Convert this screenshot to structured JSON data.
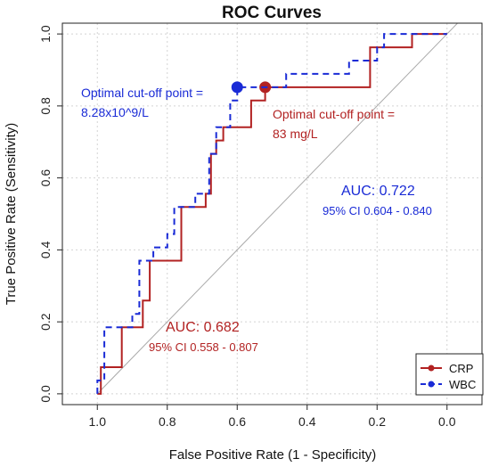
{
  "chart_data": {
    "type": "line",
    "title": "ROC Curves",
    "xlabel": "False Positive Rate (1 - Specificity)",
    "ylabel": "True Positive Rate (Sensitivity)",
    "xlim": [
      1.1,
      -0.1
    ],
    "ylim": [
      -0.03,
      1.03
    ],
    "x_ticks": [
      1.0,
      0.8,
      0.6,
      0.4,
      0.2,
      0.0
    ],
    "x_tick_labels": [
      "1.0",
      "0.8",
      "0.6",
      "0.4",
      "0.2",
      "0.0"
    ],
    "y_ticks": [
      0.0,
      0.2,
      0.4,
      0.6,
      0.8,
      1.0
    ],
    "y_tick_labels": [
      "0.0",
      "0.2",
      "0.4",
      "0.6",
      "0.8",
      "1.0"
    ],
    "grid": true,
    "reference_line": true,
    "legend_position": "bottom-right",
    "series": [
      {
        "name": "CRP",
        "color": "#b22222",
        "dash": "solid",
        "points": [
          [
            1.0,
            0.0
          ],
          [
            0.99,
            0.0
          ],
          [
            0.99,
            0.074
          ],
          [
            0.93,
            0.074
          ],
          [
            0.93,
            0.185
          ],
          [
            0.87,
            0.185
          ],
          [
            0.87,
            0.259
          ],
          [
            0.85,
            0.259
          ],
          [
            0.85,
            0.37
          ],
          [
            0.76,
            0.37
          ],
          [
            0.76,
            0.519
          ],
          [
            0.69,
            0.519
          ],
          [
            0.69,
            0.556
          ],
          [
            0.675,
            0.556
          ],
          [
            0.675,
            0.667
          ],
          [
            0.66,
            0.667
          ],
          [
            0.66,
            0.704
          ],
          [
            0.64,
            0.704
          ],
          [
            0.64,
            0.741
          ],
          [
            0.56,
            0.741
          ],
          [
            0.56,
            0.815
          ],
          [
            0.52,
            0.815
          ],
          [
            0.52,
            0.852
          ],
          [
            0.22,
            0.852
          ],
          [
            0.22,
            0.963
          ],
          [
            0.1,
            0.963
          ],
          [
            0.1,
            1.0
          ],
          [
            0.0,
            1.0
          ]
        ],
        "optimal_point": [
          0.52,
          0.852
        ]
      },
      {
        "name": "WBC",
        "color": "#1a2bd6",
        "dash": "dashed",
        "points": [
          [
            1.0,
            0.0
          ],
          [
            1.0,
            0.037
          ],
          [
            0.98,
            0.037
          ],
          [
            0.98,
            0.185
          ],
          [
            0.9,
            0.185
          ],
          [
            0.9,
            0.222
          ],
          [
            0.88,
            0.222
          ],
          [
            0.88,
            0.37
          ],
          [
            0.84,
            0.37
          ],
          [
            0.84,
            0.407
          ],
          [
            0.8,
            0.407
          ],
          [
            0.8,
            0.444
          ],
          [
            0.78,
            0.444
          ],
          [
            0.78,
            0.519
          ],
          [
            0.72,
            0.519
          ],
          [
            0.72,
            0.556
          ],
          [
            0.68,
            0.556
          ],
          [
            0.68,
            0.667
          ],
          [
            0.66,
            0.667
          ],
          [
            0.66,
            0.741
          ],
          [
            0.62,
            0.741
          ],
          [
            0.62,
            0.815
          ],
          [
            0.6,
            0.815
          ],
          [
            0.6,
            0.852
          ],
          [
            0.46,
            0.852
          ],
          [
            0.46,
            0.889
          ],
          [
            0.28,
            0.889
          ],
          [
            0.28,
            0.926
          ],
          [
            0.2,
            0.926
          ],
          [
            0.2,
            0.963
          ],
          [
            0.18,
            0.963
          ],
          [
            0.18,
            1.0
          ],
          [
            0.0,
            1.0
          ]
        ],
        "optimal_point": [
          0.6,
          0.852
        ]
      }
    ],
    "annotations": {
      "wbc_cutoff_line1": "Optimal cut-off point =",
      "wbc_cutoff_line2": "8.28x10^9/L",
      "crp_cutoff_line1": "Optimal cut-off point =",
      "crp_cutoff_line2": "83 mg/L",
      "wbc_auc": "AUC: 0.722",
      "wbc_ci": "95% CI 0.604 - 0.840",
      "crp_auc": "AUC: 0.682",
      "crp_ci": "95% CI 0.558 - 0.807"
    },
    "legend": [
      "CRP",
      "WBC"
    ]
  }
}
